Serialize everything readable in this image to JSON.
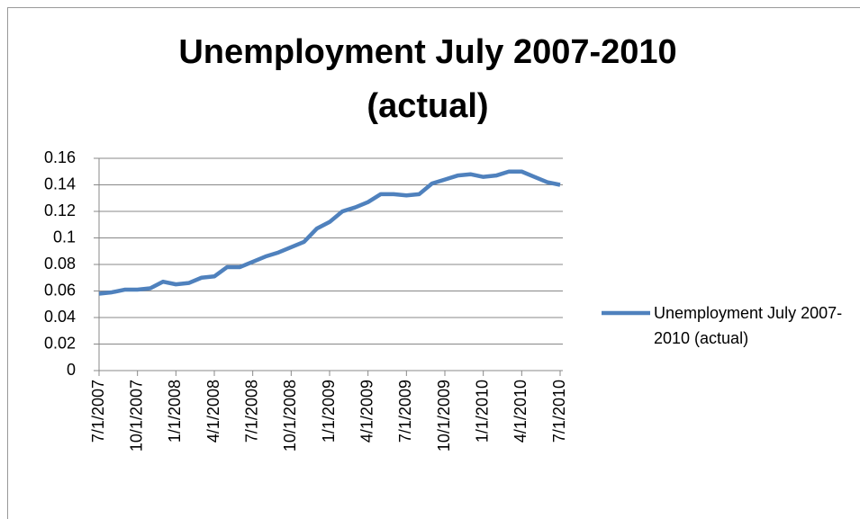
{
  "chart_data": {
    "type": "line",
    "title": "Unemployment July 2007-2010 (actual)",
    "categories": [
      "7/1/2007",
      null,
      null,
      "10/1/2007",
      null,
      null,
      "1/1/2008",
      null,
      null,
      "4/1/2008",
      null,
      null,
      "7/1/2008",
      null,
      null,
      "10/1/2008",
      null,
      null,
      "1/1/2009",
      null,
      null,
      "4/1/2009",
      null,
      null,
      "7/1/2009",
      null,
      null,
      "10/1/2009",
      null,
      null,
      "1/1/2010",
      null,
      null,
      "4/1/2010",
      null,
      null,
      "7/1/2010"
    ],
    "series": [
      {
        "name": "Unemployment July 2007-2010 (actual)",
        "color": "#4f81bd",
        "values": [
          0.058,
          0.059,
          0.061,
          0.061,
          0.062,
          0.067,
          0.065,
          0.066,
          0.07,
          0.071,
          0.078,
          0.078,
          0.082,
          0.086,
          0.089,
          0.093,
          0.097,
          0.107,
          0.112,
          0.12,
          0.123,
          0.127,
          0.133,
          0.133,
          0.132,
          0.133,
          0.141,
          0.144,
          0.147,
          0.148,
          0.146,
          0.147,
          0.15,
          0.15,
          0.146,
          0.142,
          0.14
        ]
      }
    ],
    "ylim": [
      0,
      0.16
    ],
    "yticks": [
      0,
      0.02,
      0.04,
      0.06,
      0.08,
      0.1,
      0.12,
      0.14,
      0.16
    ],
    "grid": true,
    "legend": "right"
  }
}
